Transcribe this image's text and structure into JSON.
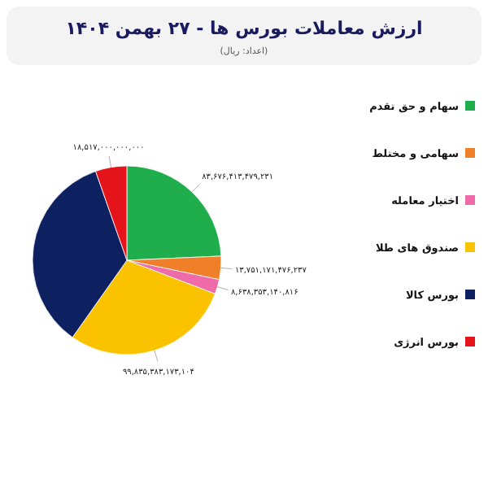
{
  "chart_data": {
    "type": "pie",
    "title": "ارزش معاملات بورس ها - ۲۷ بهمن ۱۴۰۴",
    "subtitle": "(اعداد: ریال)",
    "categories": [
      "سهام و حق تقدم",
      "سهامی و مختلط",
      "اختیار معامله",
      "صندوق های طلا",
      "بورس کالا",
      "بورس انرژی"
    ],
    "values": [
      83676413479231,
      13751171476237,
      8638353140816,
      99835383173104,
      120000000000000,
      18517000000000
    ],
    "colors": [
      "#1fae4b",
      "#f07f2a",
      "#ef6aa8",
      "#fbc200",
      "#0d2160",
      "#e5141b"
    ],
    "value_labels": [
      "۸۳,۶۷۶,۴۱۳,۴۷۹,۲۳۱",
      "۱۳,۷۵۱,۱۷۱,۴۷۶,۲۳۷",
      "۸,۶۳۸,۳۵۳,۱۴۰,۸۱۶",
      "۹۹,۸۳۵,۳۸۳,۱۷۳,۱۰۴",
      null,
      "۱۸,۵۱۷,۰۰۰,۰۰۰,۰۰۰"
    ],
    "legend": "right"
  }
}
